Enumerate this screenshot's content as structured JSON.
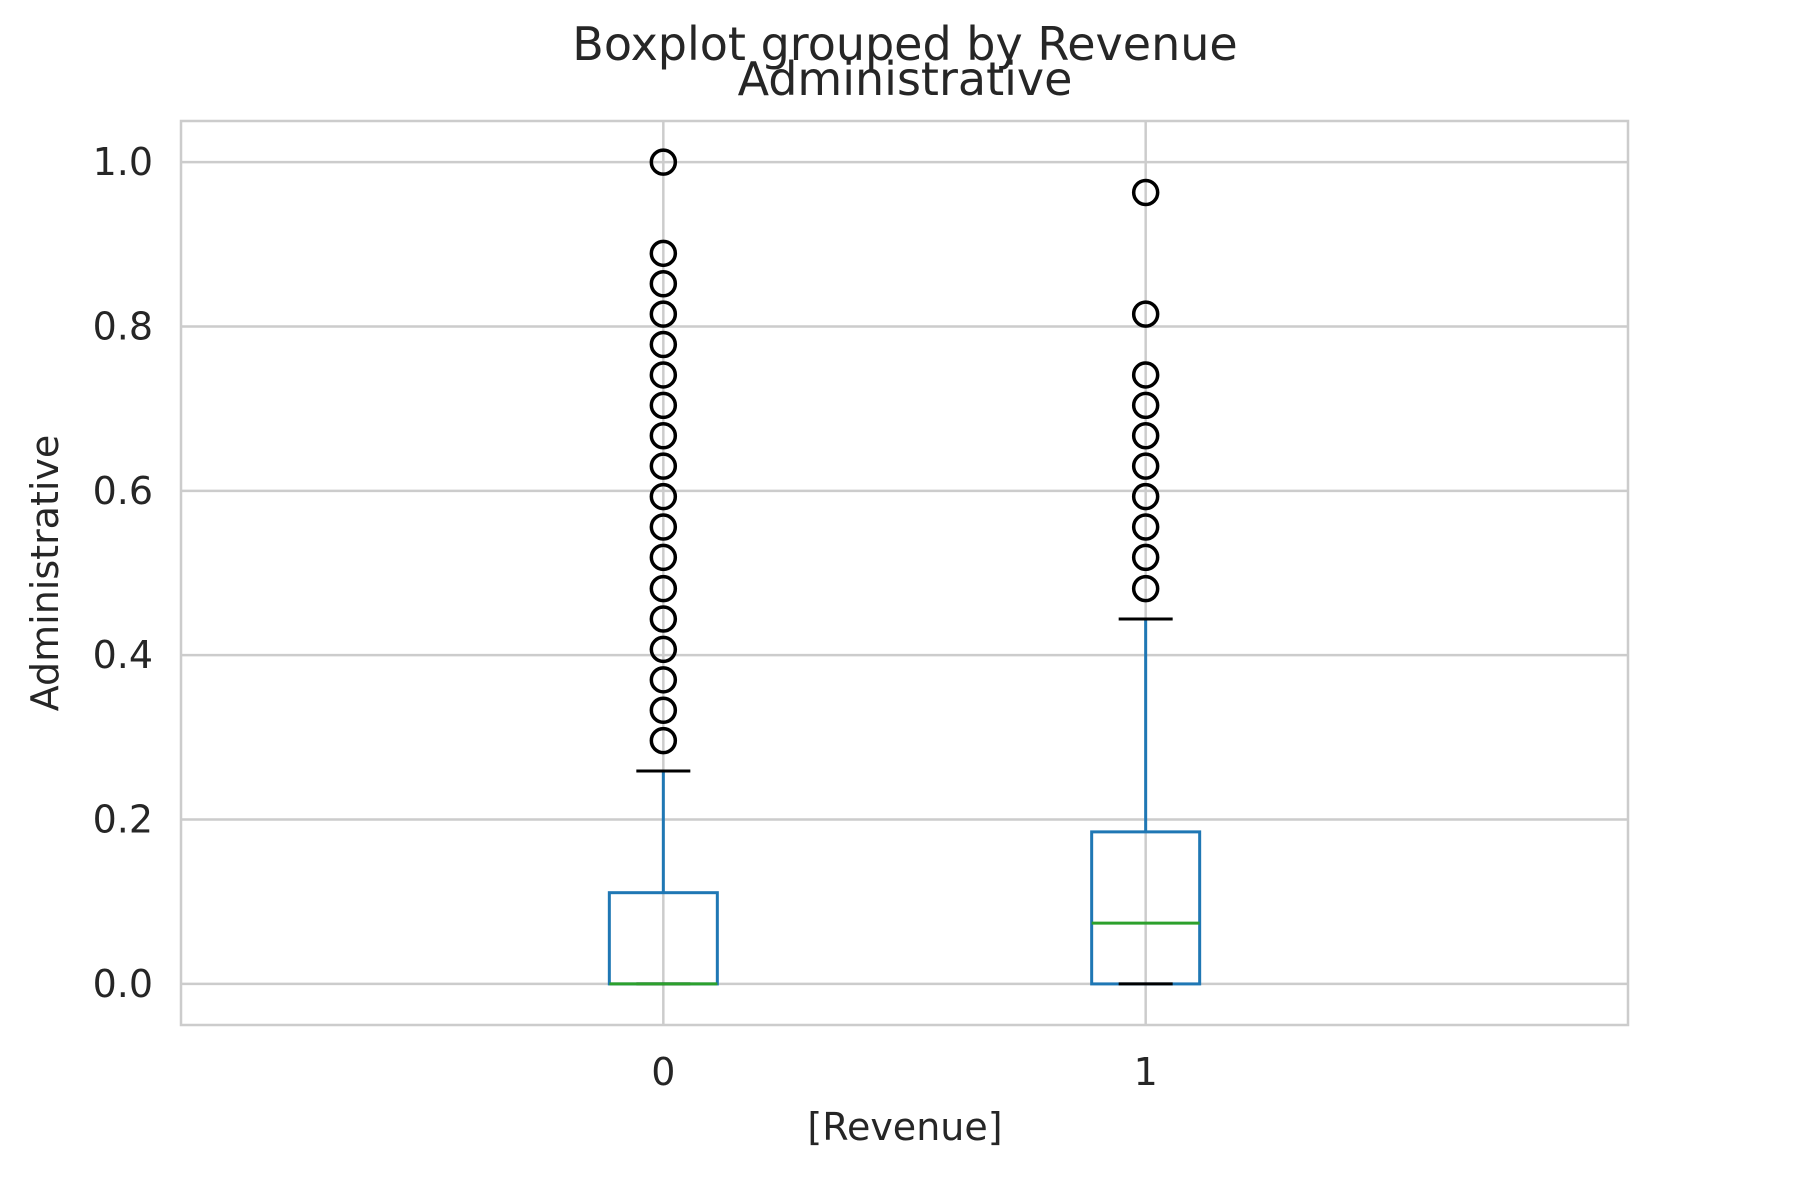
{
  "chart_data": {
    "type": "boxplot",
    "suptitle": "Boxplot grouped by Revenue",
    "title": "Administrative",
    "xlabel": "[Revenue]",
    "ylabel": "Administrative",
    "ylim": [
      -0.05,
      1.05
    ],
    "yticks": [
      {
        "value": 0.0,
        "label": "0.0"
      },
      {
        "value": 0.2,
        "label": "0.2"
      },
      {
        "value": 0.4,
        "label": "0.4"
      },
      {
        "value": 0.6,
        "label": "0.6"
      },
      {
        "value": 0.8,
        "label": "0.8"
      },
      {
        "value": 1.0,
        "label": "1.0"
      }
    ],
    "grid": true,
    "colors": {
      "box": "#1f77b4",
      "median": "#2ca02c",
      "cap": "#000000",
      "flier": "#000000",
      "grid": "#cccccc"
    },
    "groups": [
      {
        "category": "0",
        "whislo": 0.0,
        "q1": 0.0,
        "med": 0.0,
        "q3": 0.111,
        "whishi": 0.259,
        "fliers": [
          0.296,
          0.333,
          0.37,
          0.407,
          0.444,
          0.481,
          0.519,
          0.556,
          0.593,
          0.63,
          0.667,
          0.704,
          0.741,
          0.778,
          0.815,
          0.852,
          0.889,
          1.0
        ]
      },
      {
        "category": "1",
        "whislo": 0.0,
        "q1": 0.0,
        "med": 0.074,
        "q3": 0.185,
        "whishi": 0.444,
        "fliers": [
          0.481,
          0.519,
          0.556,
          0.593,
          0.63,
          0.667,
          0.704,
          0.741,
          0.815,
          0.963
        ]
      }
    ]
  }
}
